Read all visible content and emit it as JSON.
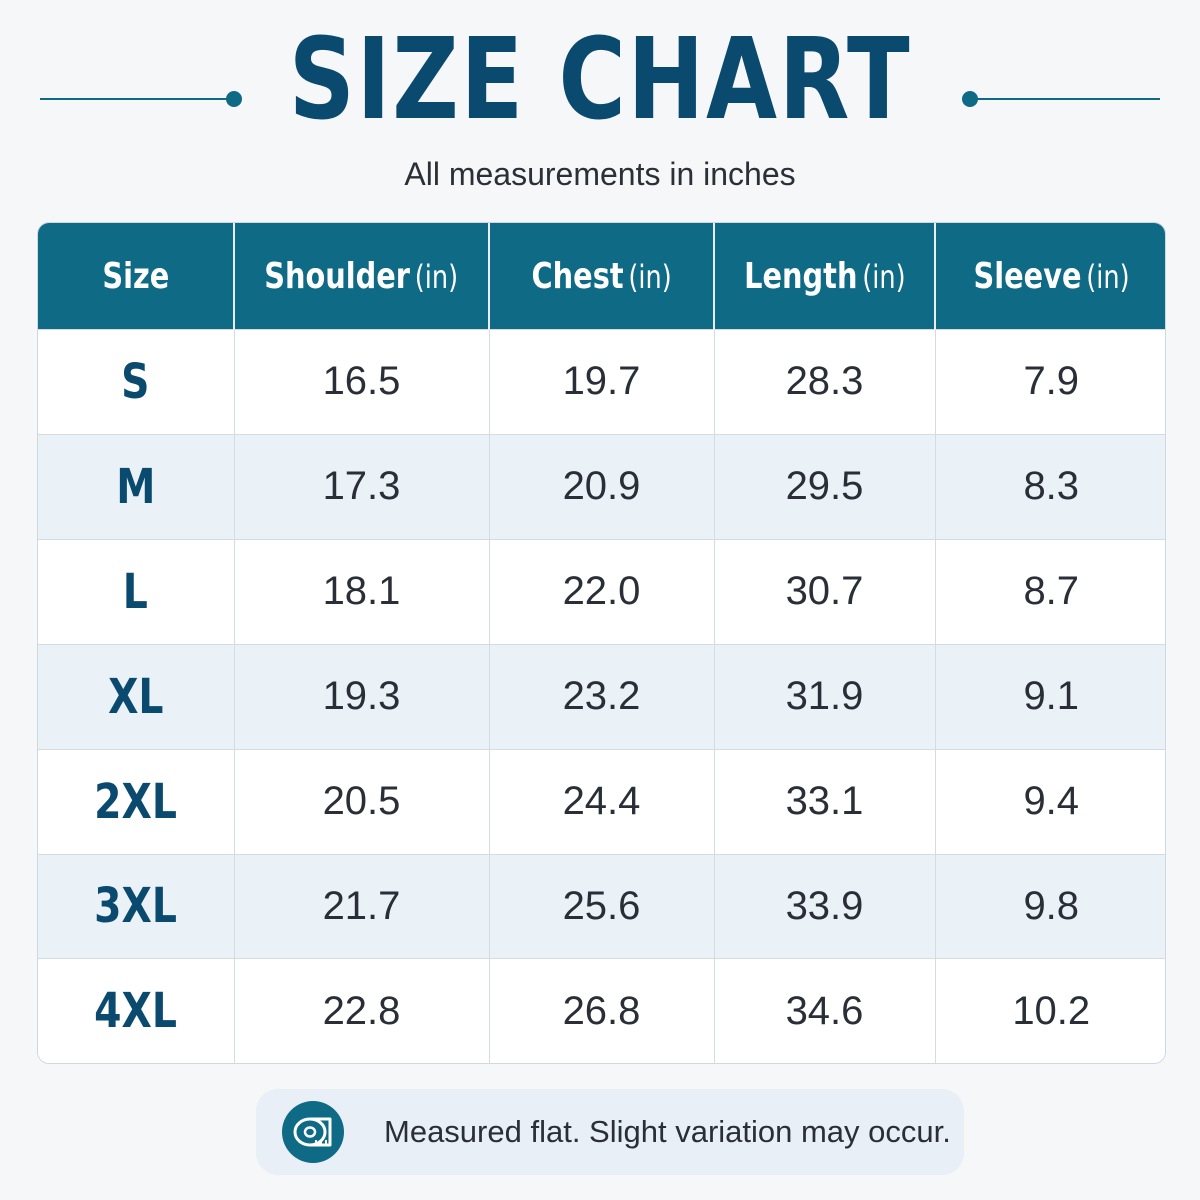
{
  "header": {
    "title": "SIZE CHART",
    "subtitle": "All measurements in inches"
  },
  "table": {
    "columns": [
      {
        "label": "Size",
        "unit": ""
      },
      {
        "label": "Shoulder",
        "unit": "(in)"
      },
      {
        "label": "Chest",
        "unit": "(in)"
      },
      {
        "label": "Length",
        "unit": "(in)"
      },
      {
        "label": "Sleeve",
        "unit": "(in)"
      }
    ],
    "rows": [
      [
        "S",
        "16.5",
        "19.7",
        "28.3",
        "7.9"
      ],
      [
        "M",
        "17.3",
        "20.9",
        "29.5",
        "8.3"
      ],
      [
        "L",
        "18.1",
        "22.0",
        "30.7",
        "8.7"
      ],
      [
        "XL",
        "19.3",
        "23.2",
        "31.9",
        "9.1"
      ],
      [
        "2XL",
        "20.5",
        "24.4",
        "33.1",
        "9.4"
      ],
      [
        "3XL",
        "21.7",
        "25.6",
        "33.9",
        "9.8"
      ],
      [
        "4XL",
        "22.8",
        "26.8",
        "34.6",
        "10.2"
      ]
    ]
  },
  "note": {
    "icon": "measuring-tape-icon",
    "text": "Measured flat. Slight variation may occur."
  },
  "colors": {
    "header_bg": "#0f6a86",
    "title": "#0b4a6f",
    "row_alt": "#eaf1f7"
  }
}
